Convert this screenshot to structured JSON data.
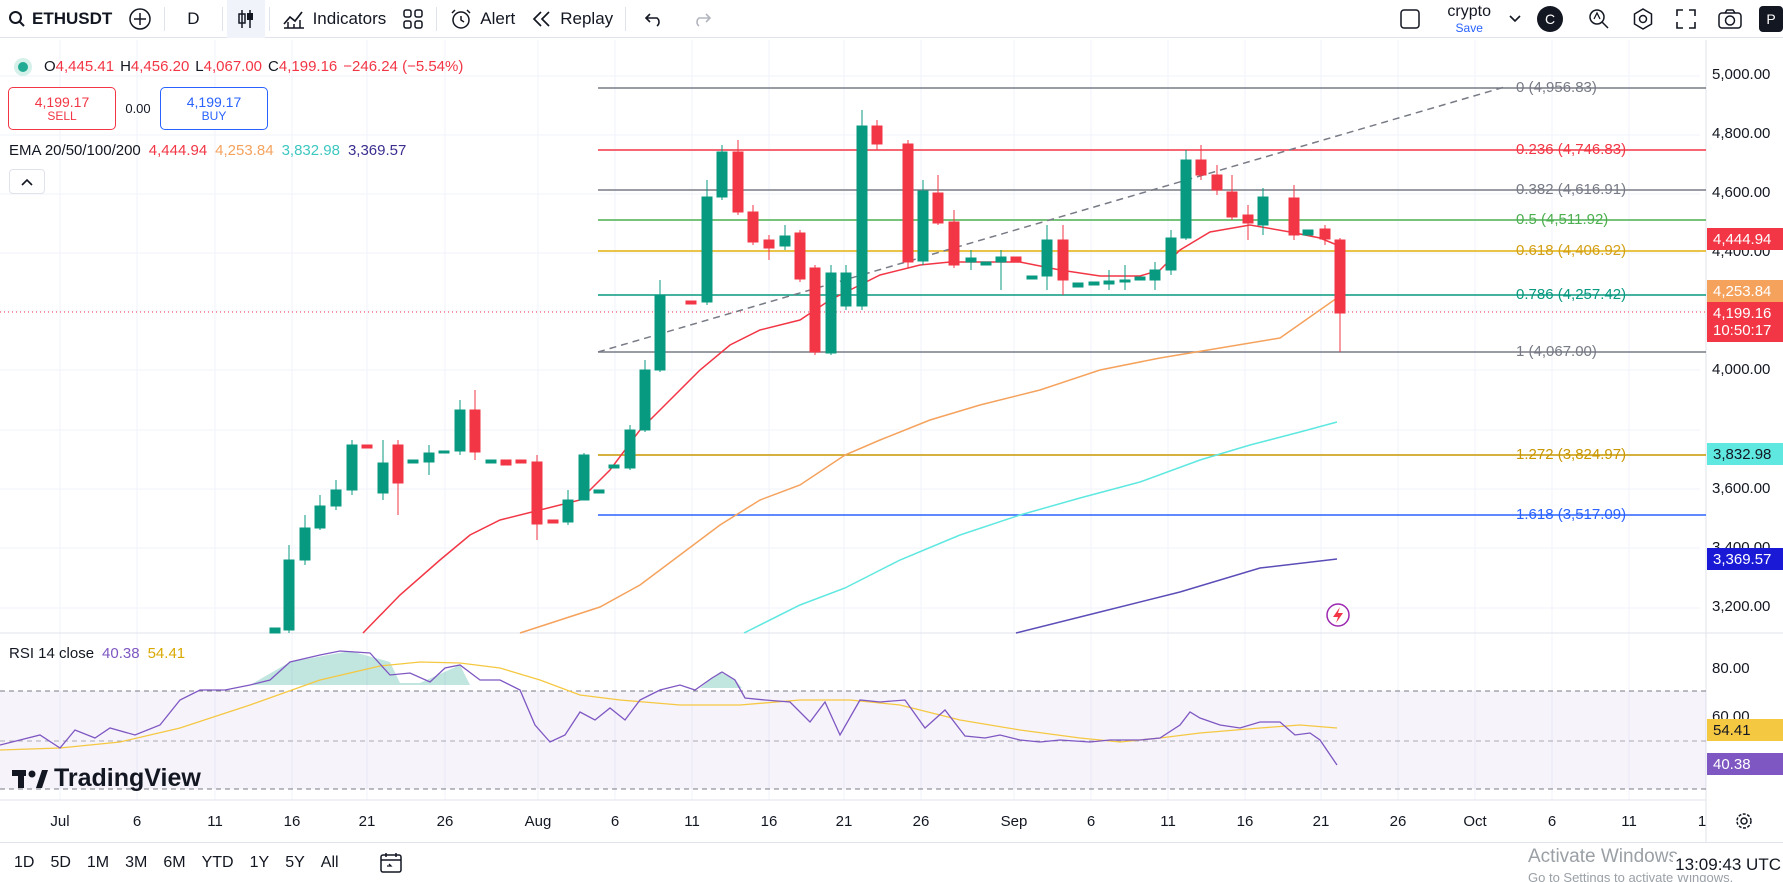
{
  "toolbar": {
    "symbol": "ETHUSDT",
    "interval": "D",
    "indicators_label": "Indicators",
    "alert_label": "Alert",
    "replay_label": "Replay",
    "layout_name": "crypto",
    "layout_save": "Save",
    "avatar_letter": "C",
    "publish_letter": "P"
  },
  "ohlc": {
    "o_label": "O",
    "o": "4,445.41",
    "h_label": "H",
    "h": "4,456.20",
    "l_label": "L",
    "l": "4,067.00",
    "c_label": "C",
    "c": "4,199.16",
    "change": "−246.24 (−5.54%)"
  },
  "trade": {
    "sell_price": "4,199.17",
    "sell_label": "SELL",
    "spread": "0.00",
    "buy_price": "4,199.17",
    "buy_label": "BUY"
  },
  "ema_legend": {
    "name": "EMA 20/50/100/200",
    "v20": "4,444.94",
    "v50": "4,253.84",
    "v100": "3,832.98",
    "v200": "3,369.57"
  },
  "rsi_legend": {
    "name": "RSI 14 close",
    "rsi": "40.38",
    "ma": "54.41"
  },
  "price_axis": [
    "5,000.00",
    "4,800.00",
    "4,600.00",
    "4,400.00",
    "4,000.00",
    "3,600.00",
    "3,400.00",
    "3,200.00"
  ],
  "rsi_axis": [
    "80.00",
    "60.00"
  ],
  "price_tags": {
    "ema20": "4,444.94",
    "ema50": "4,253.84",
    "last_price": "4,199.16",
    "countdown": "10:50:17",
    "ema100": "3,832.98",
    "ema200": "3,369.57",
    "rsi_ma": "54.41",
    "rsi": "40.38"
  },
  "fib_levels": [
    {
      "text": "0 (4,956.83)",
      "color": "#787b86"
    },
    {
      "text": "0.236 (4,746.83)",
      "color": "#f23645"
    },
    {
      "text": "0.382 (4,616.91)",
      "color": "#787b86"
    },
    {
      "text": "0.5 (4,511.92)",
      "color": "#4caf50"
    },
    {
      "text": "0.618 (4,406.92)",
      "color": "#d4a017"
    },
    {
      "text": "0.786 (4,257.42)",
      "color": "#089981"
    },
    {
      "text": "1 (4,067.00)",
      "color": "#787b86"
    },
    {
      "text": "1.272 (3,824.97)",
      "color": "#c99700"
    },
    {
      "text": "1.618 (3,517.09)",
      "color": "#2962ff"
    }
  ],
  "time_axis": [
    "Jul",
    "6",
    "11",
    "16",
    "21",
    "26",
    "Aug",
    "6",
    "11",
    "16",
    "21",
    "26",
    "Sep",
    "6",
    "11",
    "16",
    "21",
    "26",
    "Oct",
    "6",
    "11",
    "1"
  ],
  "ranges": [
    "1D",
    "5D",
    "1M",
    "3M",
    "6M",
    "YTD",
    "1Y",
    "5Y",
    "All"
  ],
  "clock": "13:09:43 UTC",
  "watermark": {
    "line1": "Activate Windows",
    "line2": "Go to Settings to activate Windows."
  },
  "brand": "TradingView",
  "colors": {
    "up": "#089981",
    "down": "#f23645",
    "ema20": "#f23645",
    "ema50": "#f5a25d",
    "ema100": "#5ee8e0",
    "ema200": "#5b4db7",
    "rsi": "#7e57c2",
    "rsi_ma": "#f5c842"
  }
}
